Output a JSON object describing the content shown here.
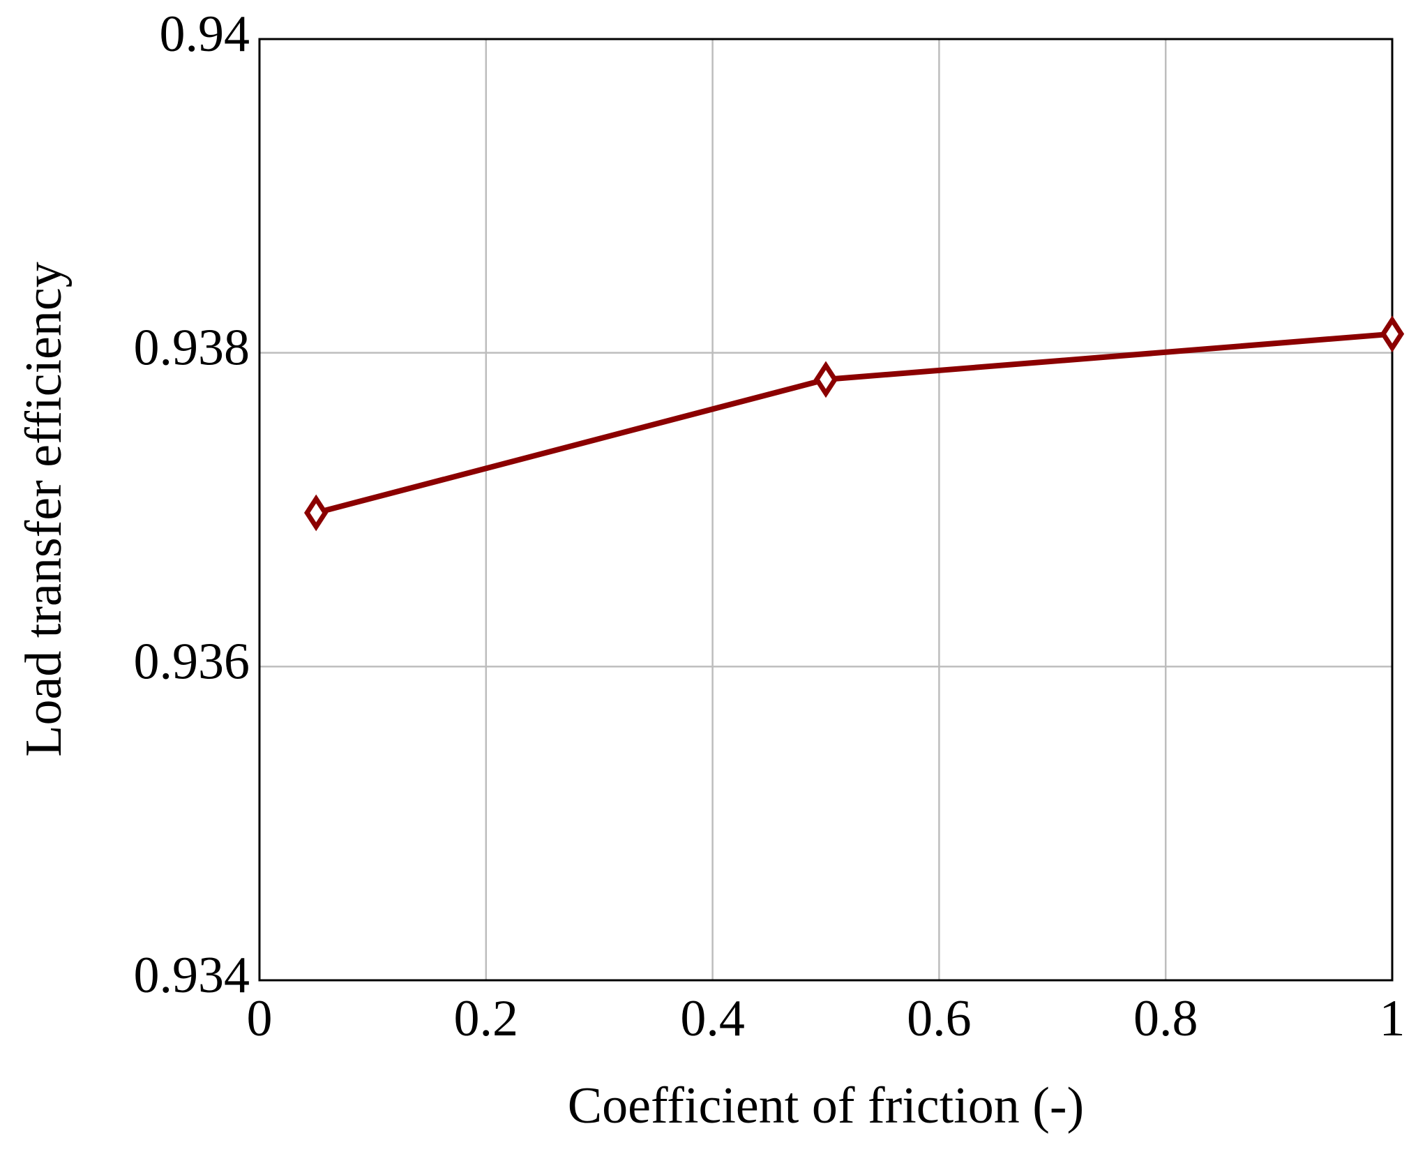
{
  "chart_data": {
    "type": "line",
    "x_label": "Coefficient of friction (-)",
    "y_label": "Load transfer efficiency",
    "x": [
      0.05,
      0.5,
      1
    ],
    "series": [
      {
        "color": "#8b0000",
        "values": [
          0.93698,
          0.93783,
          0.93812
        ]
      }
    ],
    "xlim": [
      0,
      1
    ],
    "xticks": [
      0,
      0.2,
      0.4,
      0.6,
      0.8,
      1
    ],
    "ylim": [
      0.934,
      0.94
    ],
    "yticks": [
      0.934,
      0.936,
      0.938,
      0.94
    ],
    "grid": true
  }
}
